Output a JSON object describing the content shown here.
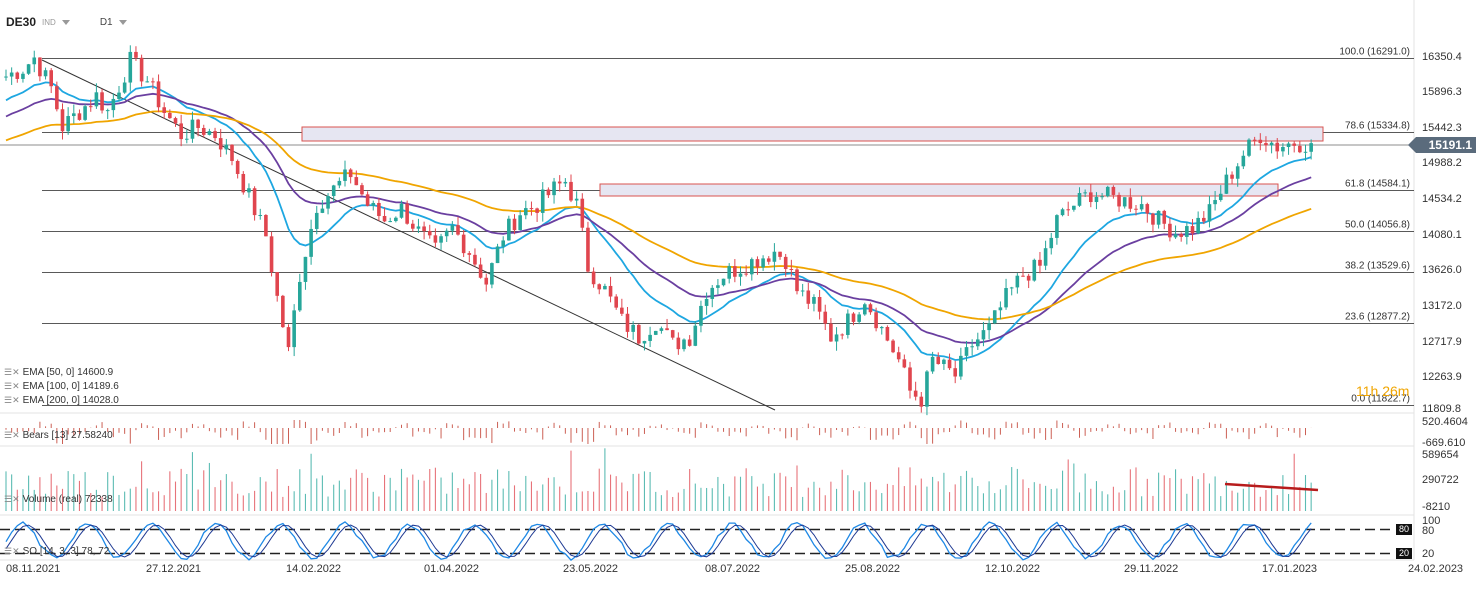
{
  "header": {
    "symbol": "DE30",
    "market": "IND",
    "timeframe": "D1"
  },
  "price_axis": {
    "labels": [
      "16350.4",
      "15896.3",
      "15442.3",
      "14988.2",
      "14534.2",
      "14080.1",
      "13626.0",
      "13172.0",
      "12717.9",
      "12263.9",
      "11809.8"
    ]
  },
  "last_price": "15191.1",
  "timer": {
    "h": "11h",
    "m": "26m"
  },
  "fib_levels": [
    {
      "label": "100.0 (16291.0)"
    },
    {
      "label": "78.6 (15334.8)"
    },
    {
      "label": "61.8 (14584.1)"
    },
    {
      "label": "50.0 (14056.8)"
    },
    {
      "label": "38.2 (13529.6)"
    },
    {
      "label": "23.6 (12877.2)"
    },
    {
      "label": "0.0 (11822.7)"
    }
  ],
  "legend": {
    "ema50": "EMA [50, 0] 14600.9",
    "ema100": "EMA [100, 0] 14189.6",
    "ema200": "EMA [200, 0] 14028.0",
    "bears": "Bears [13] 27.58240",
    "volume": "Volume (real) 72338",
    "so": "SO [14, 3, 3] 78, 72"
  },
  "bears_axis": {
    "top": "520.4604",
    "bottom": "-669.610"
  },
  "volume_axis": {
    "top": "589654",
    "mid": "290722",
    "bottom": "-8210"
  },
  "so_axis": {
    "top": "100",
    "upper": "80",
    "lower": "20"
  },
  "so_tags": {
    "upper": "80",
    "lower": "20"
  },
  "dates": [
    "08.11.2021",
    "27.12.2021",
    "14.02.2022",
    "01.04.2022",
    "23.05.2022",
    "08.07.2022",
    "25.08.2022",
    "12.10.2022",
    "29.11.2022",
    "17.01.2023",
    "24.02.2023"
  ],
  "colors": {
    "up": "#26a69a",
    "down": "#e0454e",
    "ema50": "#1ea7e1",
    "ema100": "#6a3fa0",
    "ema200": "#f0a500",
    "zone": "#e8e8f3",
    "zone_border": "#d9534f"
  },
  "chart_data": {
    "type": "candlestick",
    "ema_series": [
      {
        "name": "EMA [50, 0]",
        "last": 14600.9
      },
      {
        "name": "EMA [100, 0]",
        "last": 14189.6
      },
      {
        "name": "EMA [200, 0]",
        "last": 14028.0
      }
    ],
    "close_path": [
      [
        0,
        16050
      ],
      [
        3,
        16150
      ],
      [
        5,
        16291
      ],
      [
        8,
        15900
      ],
      [
        10,
        15400
      ],
      [
        13,
        15600
      ],
      [
        16,
        15800
      ],
      [
        18,
        15600
      ],
      [
        22,
        16250
      ],
      [
        25,
        16000
      ],
      [
        28,
        15600
      ],
      [
        31,
        15300
      ],
      [
        34,
        15400
      ],
      [
        37,
        15300
      ],
      [
        40,
        15000
      ],
      [
        43,
        14500
      ],
      [
        46,
        14000
      ],
      [
        48,
        13200
      ],
      [
        50,
        12500
      ],
      [
        52,
        13500
      ],
      [
        55,
        14400
      ],
      [
        58,
        14600
      ],
      [
        61,
        14800
      ],
      [
        64,
        14400
      ],
      [
        67,
        14200
      ],
      [
        70,
        14350
      ],
      [
        73,
        14050
      ],
      [
        76,
        13800
      ],
      [
        79,
        14100
      ],
      [
        82,
        13800
      ],
      [
        85,
        13400
      ],
      [
        88,
        14000
      ],
      [
        91,
        14300
      ],
      [
        94,
        14400
      ],
      [
        97,
        14600
      ],
      [
        99,
        14700
      ],
      [
        101,
        14400
      ],
      [
        103,
        13600
      ],
      [
        106,
        13300
      ],
      [
        109,
        12900
      ],
      [
        112,
        12700
      ],
      [
        115,
        12900
      ],
      [
        118,
        12600
      ],
      [
        121,
        12700
      ],
      [
        124,
        13300
      ],
      [
        127,
        13500
      ],
      [
        130,
        13600
      ],
      [
        133,
        13700
      ],
      [
        136,
        13800
      ],
      [
        138,
        13700
      ],
      [
        140,
        13300
      ],
      [
        143,
        13100
      ],
      [
        146,
        12700
      ],
      [
        149,
        12900
      ],
      [
        152,
        13200
      ],
      [
        155,
        12800
      ],
      [
        158,
        12400
      ],
      [
        160,
        12000
      ],
      [
        162,
        11900
      ],
      [
        164,
        12400
      ],
      [
        166,
        12300
      ],
      [
        168,
        12200
      ],
      [
        171,
        12600
      ],
      [
        174,
        12800
      ],
      [
        177,
        13200
      ],
      [
        180,
        13500
      ],
      [
        183,
        13600
      ],
      [
        186,
        14200
      ],
      [
        189,
        14400
      ],
      [
        192,
        14550
      ],
      [
        195,
        14500
      ],
      [
        198,
        14450
      ],
      [
        201,
        14400
      ],
      [
        204,
        14200
      ],
      [
        207,
        14050
      ],
      [
        210,
        14100
      ],
      [
        213,
        14300
      ],
      [
        216,
        14700
      ],
      [
        219,
        15050
      ],
      [
        222,
        15300
      ],
      [
        225,
        15150
      ],
      [
        228,
        15200
      ],
      [
        231,
        15191
      ]
    ]
  }
}
